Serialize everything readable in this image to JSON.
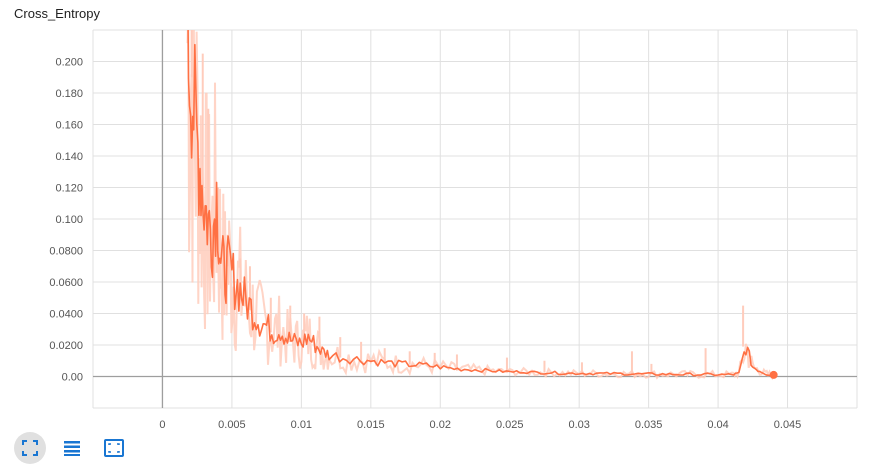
{
  "card": {
    "title": "Cross_Entropy"
  },
  "toolbar": {
    "buttons": [
      {
        "icon": "fit-domain-icon",
        "active": true
      },
      {
        "icon": "list-icon",
        "active": false
      },
      {
        "icon": "zoom-select-icon",
        "active": false
      }
    ]
  },
  "colors": {
    "line": "#ff7043",
    "raw": "#ffccbc",
    "grid": "#e0e0e0",
    "axis": "#9e9e9e",
    "icon": "#1976d2"
  },
  "chart_data": {
    "type": "line",
    "title": "Cross_Entropy",
    "xlabel": "",
    "ylabel": "",
    "xlim": [
      -0.005,
      0.05
    ],
    "ylim": [
      -0.02,
      0.22
    ],
    "grid": true,
    "x_ticks": [
      0,
      0.005,
      0.01,
      0.015,
      0.02,
      0.025,
      0.03,
      0.035,
      0.04,
      0.045
    ],
    "x_tick_labels": [
      "0",
      "0.005",
      "0.01",
      "0.015",
      "0.02",
      "0.025",
      "0.03",
      "0.035",
      "0.04",
      "0.045"
    ],
    "y_ticks": [
      0,
      0.02,
      0.04,
      0.06,
      0.08,
      0.1,
      0.12,
      0.14,
      0.16,
      0.18,
      0.2
    ],
    "y_tick_labels": [
      "0.00",
      "0.0200",
      "0.0400",
      "0.0600",
      "0.0800",
      "0.100",
      "0.120",
      "0.140",
      "0.160",
      "0.180",
      "0.200"
    ],
    "series": [
      {
        "name": "",
        "x": [
          0.0018,
          0.0021,
          0.0024,
          0.0027,
          0.003,
          0.0033,
          0.0036,
          0.0039,
          0.0042,
          0.0045,
          0.0048,
          0.0052,
          0.0056,
          0.006,
          0.0065,
          0.007,
          0.0075,
          0.008,
          0.0085,
          0.009,
          0.0095,
          0.01,
          0.0105,
          0.011,
          0.0115,
          0.012,
          0.013,
          0.014,
          0.015,
          0.016,
          0.017,
          0.018,
          0.019,
          0.02,
          0.021,
          0.022,
          0.023,
          0.024,
          0.025,
          0.026,
          0.027,
          0.028,
          0.029,
          0.03,
          0.031,
          0.032,
          0.033,
          0.034,
          0.035,
          0.036,
          0.037,
          0.038,
          0.039,
          0.04,
          0.041,
          0.0415,
          0.042,
          0.0425,
          0.043,
          0.0435,
          0.044
        ],
        "y": [
          0.215,
          0.19,
          0.155,
          0.135,
          0.11,
          0.098,
          0.09,
          0.115,
          0.075,
          0.065,
          0.07,
          0.06,
          0.055,
          0.048,
          0.042,
          0.035,
          0.032,
          0.028,
          0.03,
          0.024,
          0.022,
          0.021,
          0.025,
          0.02,
          0.016,
          0.014,
          0.012,
          0.011,
          0.01,
          0.009,
          0.008,
          0.0075,
          0.007,
          0.006,
          0.005,
          0.0045,
          0.004,
          0.0035,
          0.003,
          0.003,
          0.0025,
          0.0025,
          0.002,
          0.002,
          0.002,
          0.0018,
          0.0018,
          0.0016,
          0.0015,
          0.0015,
          0.0014,
          0.0013,
          0.0012,
          0.0012,
          0.0011,
          0.002,
          0.019,
          0.006,
          0.0035,
          0.0015,
          0.001
        ]
      },
      {
        "name": "",
        "x": [
          0.0021,
          0.0029,
          0.0033,
          0.004,
          0.0047,
          0.0056,
          0.0063,
          0.0078,
          0.0092,
          0.0102,
          0.0113,
          0.0128,
          0.0143,
          0.016,
          0.0178,
          0.0196,
          0.0212,
          0.0248,
          0.0275,
          0.0302,
          0.0338,
          0.0352,
          0.0391,
          0.0418
        ],
        "y": [
          0.23,
          0.205,
          0.17,
          0.12,
          0.09,
          0.075,
          0.07,
          0.05,
          0.045,
          0.04,
          0.038,
          0.025,
          0.022,
          0.018,
          0.016,
          0.015,
          0.014,
          0.012,
          0.01,
          0.009,
          0.016,
          0.008,
          0.018,
          0.045
        ]
      }
    ],
    "last_point": {
      "x": 0.044,
      "y": 0.001
    }
  }
}
